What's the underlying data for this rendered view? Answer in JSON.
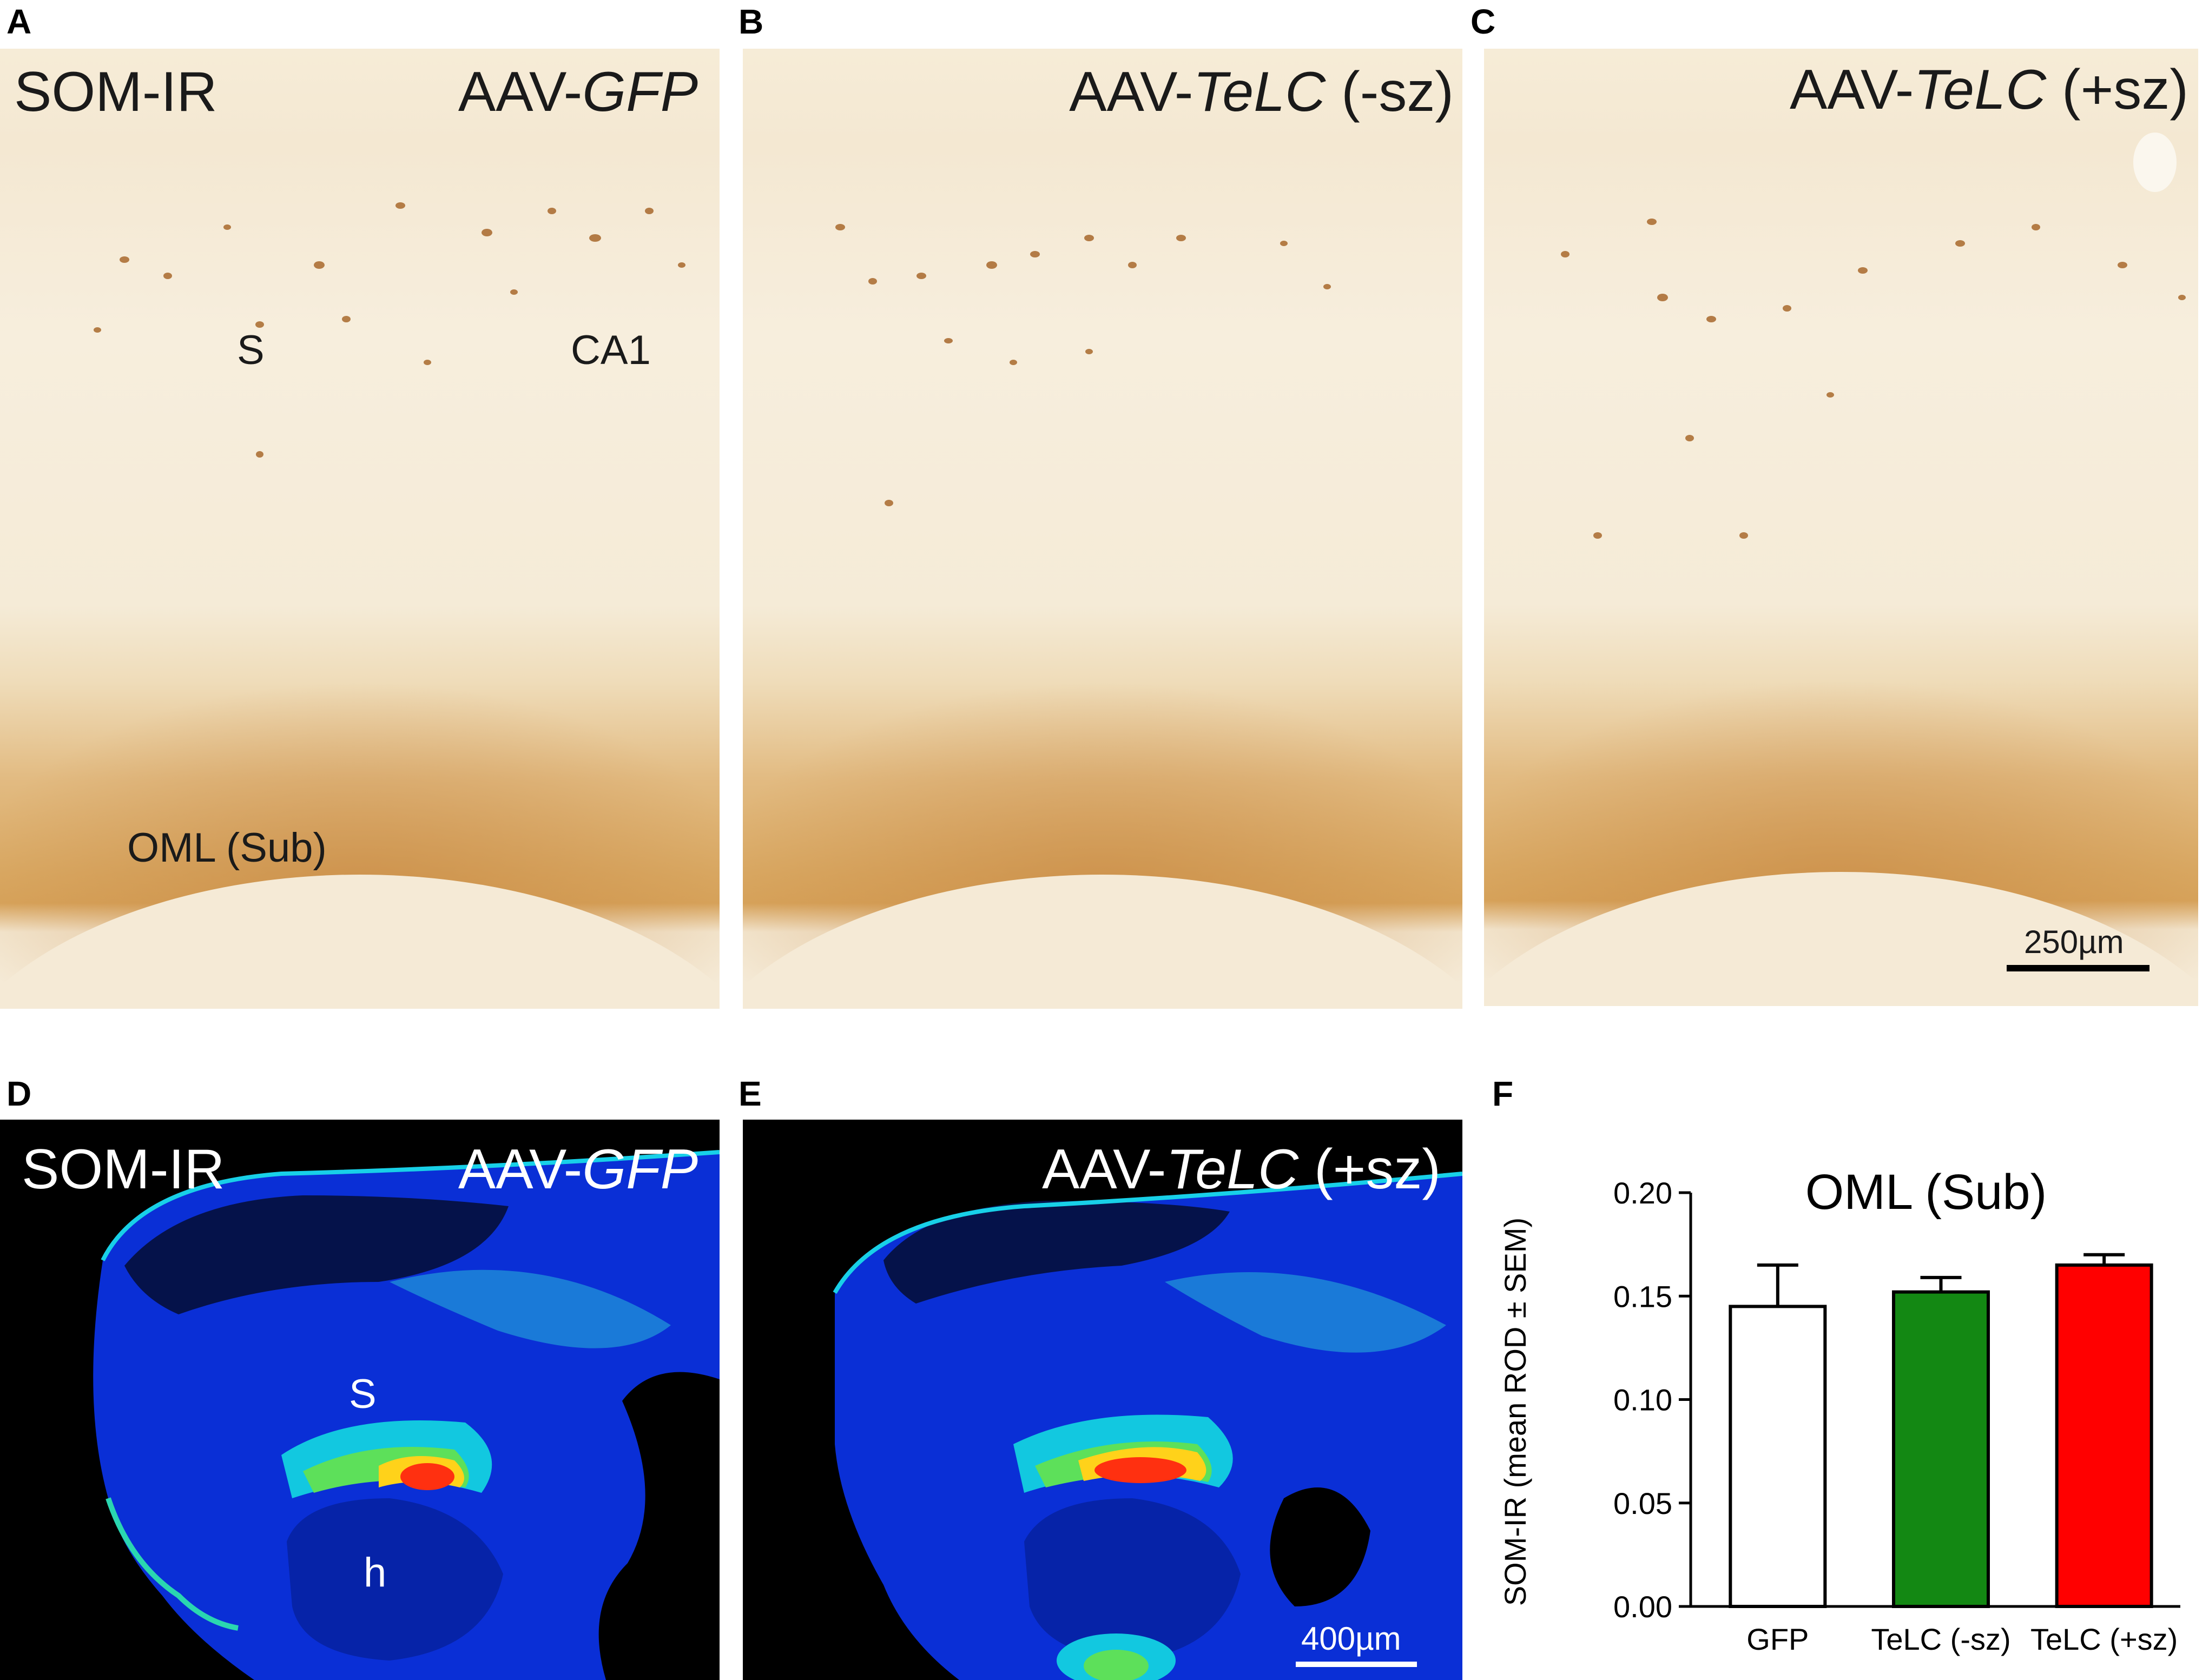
{
  "panel_labels": {
    "a": "A",
    "b": "B",
    "c": "C",
    "d": "D",
    "e": "E",
    "f": "F"
  },
  "panel_a": {
    "stain": "SOM-IR",
    "prefix": "AAV-",
    "gene": "GFP",
    "suffix": "",
    "region_s": "S",
    "region_ca1": "CA1",
    "region_oml": "OML (Sub)"
  },
  "panel_b": {
    "prefix": "AAV-",
    "gene": "TeLC",
    "suffix": " (-sz)"
  },
  "panel_c": {
    "prefix": "AAV-",
    "gene": "TeLC",
    "suffix": " (+sz)",
    "scalebar": "250µm"
  },
  "panel_d": {
    "stain": "SOM-IR",
    "prefix": "AAV-",
    "gene": "GFP",
    "region_s": "S",
    "region_h": "h"
  },
  "panel_e": {
    "prefix": "AAV-",
    "gene": "TeLC",
    "suffix": " (+sz)",
    "scalebar": "400µm"
  },
  "chart_data": {
    "type": "bar",
    "title": "OML (Sub)",
    "ylabel": "SOM-IR (mean ROD ± SEM)",
    "xlabel": "",
    "categories": [
      "GFP",
      "TeLC (-sz)",
      "TeLC (+sz)"
    ],
    "values": [
      0.145,
      0.152,
      0.165
    ],
    "errors": [
      0.02,
      0.007,
      0.005
    ],
    "colors": [
      "#ffffff",
      "#138813",
      "#ff0000"
    ],
    "ylim": [
      0,
      0.2
    ],
    "yticks": [
      "0.00",
      "0.05",
      "0.10",
      "0.15",
      "0.20"
    ]
  }
}
